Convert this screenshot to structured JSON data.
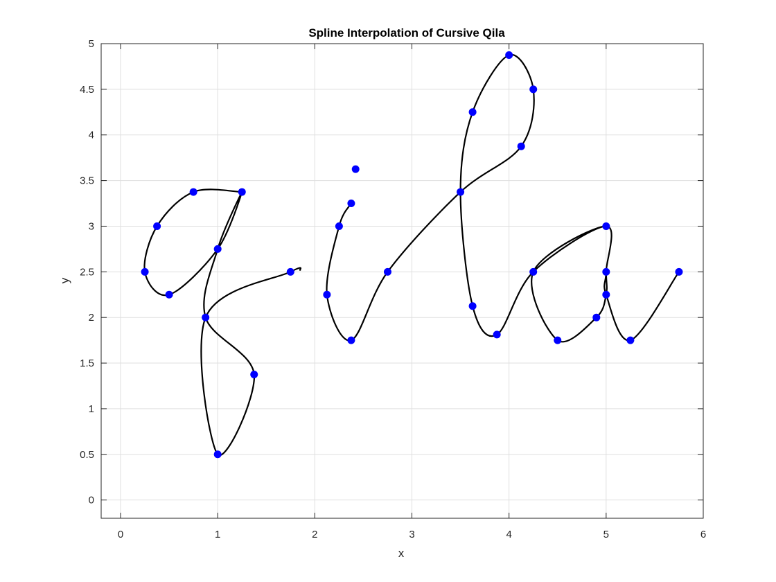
{
  "chart_data": {
    "type": "line",
    "title": "Spline Interpolation of Cursive Qila",
    "xlabel": "x",
    "ylabel": "y",
    "xlim": [
      -0.2,
      6
    ],
    "ylim": [
      -0.2,
      5
    ],
    "xticks": [
      0,
      1,
      2,
      3,
      4,
      5,
      6
    ],
    "yticks": [
      0,
      0.5,
      1,
      1.5,
      2,
      2.5,
      3,
      3.5,
      4,
      4.5,
      5
    ],
    "grid": true,
    "curve_color": "#000000",
    "point_color": "#0000ff",
    "strokes": [
      {
        "name": "",
        "points": [
          [
            1.25,
            3.375
          ],
          [
            0.75,
            3.375
          ],
          [
            0.375,
            3.0
          ],
          [
            0.25,
            2.5
          ],
          [
            0.5,
            2.25
          ],
          [
            1.0,
            2.75
          ],
          [
            1.25,
            3.375
          ],
          [
            1.0,
            2.75
          ],
          [
            0.875,
            2.0
          ],
          [
            1.375,
            1.375
          ],
          [
            1.0,
            0.5
          ],
          [
            0.875,
            2.0
          ],
          [
            1.75,
            2.5
          ],
          [
            1.85,
            2.52
          ]
        ]
      },
      {
        "name": "",
        "points": [
          [
            2.375,
            3.25
          ],
          [
            2.25,
            3.0
          ],
          [
            2.125,
            2.25
          ],
          [
            2.375,
            1.75
          ],
          [
            2.75,
            2.5
          ],
          [
            3.5,
            3.375
          ],
          [
            4.125,
            3.875
          ],
          [
            4.25,
            4.5
          ],
          [
            4.0,
            4.875
          ],
          [
            3.625,
            4.25
          ],
          [
            3.5,
            3.375
          ],
          [
            3.625,
            2.125
          ],
          [
            3.875,
            1.8125
          ],
          [
            4.25,
            2.5
          ],
          [
            5.0,
            3.0
          ],
          [
            5.0,
            2.5
          ],
          [
            5.0,
            2.25
          ],
          [
            4.9,
            2.0
          ],
          [
            4.5,
            1.75
          ],
          [
            4.25,
            2.5
          ],
          [
            5.0,
            3.0
          ],
          [
            5.0,
            2.5
          ],
          [
            5.0,
            2.25
          ],
          [
            5.25,
            1.75
          ],
          [
            5.75,
            2.5
          ]
        ]
      }
    ],
    "points": [
      [
        1.25,
        3.375
      ],
      [
        0.75,
        3.375
      ],
      [
        0.375,
        3.0
      ],
      [
        0.25,
        2.5
      ],
      [
        0.5,
        2.25
      ],
      [
        1.0,
        2.75
      ],
      [
        0.875,
        2.0
      ],
      [
        1.375,
        1.375
      ],
      [
        1.0,
        0.5
      ],
      [
        1.75,
        2.5
      ],
      [
        2.375,
        3.25
      ],
      [
        2.25,
        3.0
      ],
      [
        2.125,
        2.25
      ],
      [
        2.375,
        1.75
      ],
      [
        2.75,
        2.5
      ],
      [
        2.42,
        3.625
      ],
      [
        3.5,
        3.375
      ],
      [
        4.125,
        3.875
      ],
      [
        4.25,
        4.5
      ],
      [
        4.0,
        4.875
      ],
      [
        3.625,
        4.25
      ],
      [
        3.625,
        2.125
      ],
      [
        3.875,
        1.8125
      ],
      [
        4.25,
        2.5
      ],
      [
        5.0,
        3.0
      ],
      [
        5.0,
        2.5
      ],
      [
        5.0,
        2.25
      ],
      [
        4.9,
        2.0
      ],
      [
        4.5,
        1.75
      ],
      [
        5.25,
        1.75
      ],
      [
        5.75,
        2.5
      ]
    ]
  }
}
